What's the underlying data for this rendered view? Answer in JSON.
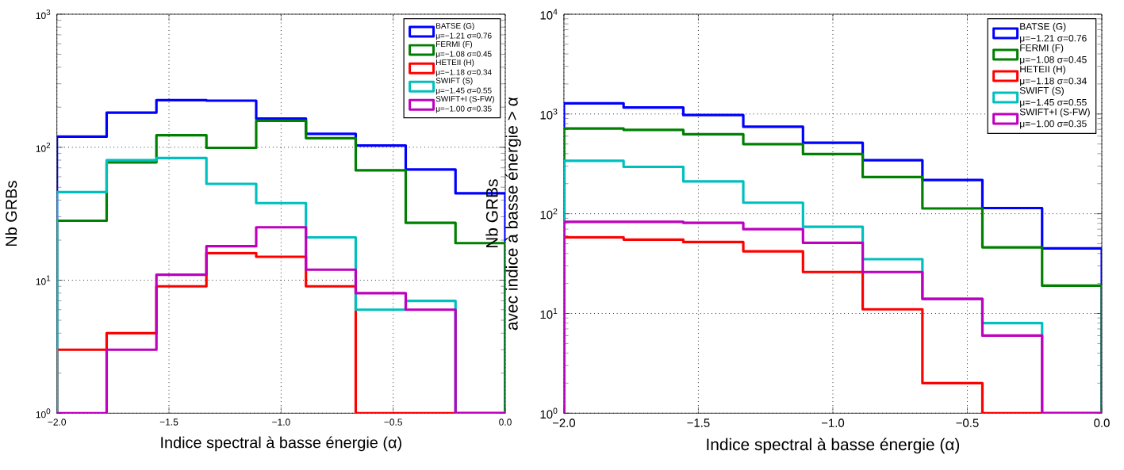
{
  "chart_data": [
    {
      "type": "histogram",
      "xlabel": "Indice spectral à basse énergie (α)",
      "ylabel": "Nb GRBs",
      "bins": [
        -2,
        -1.778,
        -1.556,
        -1.333,
        -1.111,
        -0.889,
        -0.667,
        -0.444,
        -0.222,
        0
      ],
      "xlim": [
        -2,
        0
      ],
      "ylim": [
        1,
        1000
      ],
      "log": true,
      "grid": true,
      "legend": "top right",
      "xticks": [
        {
          "value": -2,
          "label": "−2.0"
        },
        {
          "value": -1.5,
          "label": "−1.5"
        },
        {
          "value": -1,
          "label": "−1.0"
        },
        {
          "value": -0.5,
          "label": "−0.5"
        },
        {
          "value": 0,
          "label": "0.0"
        }
      ],
      "yticks": [
        {
          "value": 1,
          "label": "10$^{0}$"
        },
        {
          "value": 10,
          "label": "10$^{1}$"
        },
        {
          "value": 100,
          "label": "10$^{2}$"
        },
        {
          "value": 1000,
          "label": "10$^{3}$"
        }
      ],
      "series": [
        {
          "name": "BATSE (G)\nμ=−1.21     σ=0.76",
          "color": "#0000ff",
          "values": [
            120,
            182,
            226,
            224,
            164,
            126,
            103,
            68,
            45
          ]
        },
        {
          "name": "FERMI (F)\nμ=−1.08     σ=0.45",
          "color": "#008000",
          "values": [
            28,
            77,
            123,
            99,
            158,
            117,
            67,
            27,
            19
          ]
        },
        {
          "name": "HETEII (H)\nμ=−1.18     σ=0.34",
          "color": "#ff0000",
          "values": [
            3,
            4,
            9,
            16,
            15,
            9,
            1,
            1,
            1
          ]
        },
        {
          "name": "SWIFT (S)\nμ=−1.45     σ=0.55",
          "color": "#00bfbf",
          "values": [
            46,
            80,
            83,
            53,
            38,
            21,
            6,
            7,
            1
          ]
        },
        {
          "name": "SWIFT+I (S-FW)\nμ=−1.00     σ=0.35",
          "color": "#bf00bf",
          "values": [
            1,
            3,
            11,
            18,
            25,
            12,
            8,
            6,
            1
          ]
        }
      ]
    },
    {
      "type": "histogram",
      "xlabel": "Indice spectral à basse énergie (α)",
      "ylabel": "Nb GRBs\navec indice à basse énergie > α",
      "bins": [
        -2,
        -1.778,
        -1.556,
        -1.333,
        -1.111,
        -0.889,
        -0.667,
        -0.444,
        -0.222,
        0
      ],
      "xlim": [
        -2,
        0
      ],
      "ylim": [
        1,
        10000
      ],
      "log": true,
      "grid": true,
      "legend": "top right",
      "xticks": [
        {
          "value": -2,
          "label": "−2.0"
        },
        {
          "value": -1.5,
          "label": "−1.5"
        },
        {
          "value": -1,
          "label": "−1.0"
        },
        {
          "value": -0.5,
          "label": "−0.5"
        },
        {
          "value": 0,
          "label": "0.0"
        }
      ],
      "yticks": [
        {
          "value": 1,
          "label": "10$^{0}$"
        },
        {
          "value": 10,
          "label": "10$^{1}$"
        },
        {
          "value": 100,
          "label": "10$^{2}$"
        },
        {
          "value": 1000,
          "label": "10$^{3}$"
        },
        {
          "value": 10000,
          "label": "10$^{4}$"
        }
      ],
      "series": [
        {
          "name": "BATSE (G)\nμ=−1.21     σ=0.76",
          "color": "#0000ff",
          "values": [
            1280,
            1160,
            975,
            745,
            515,
            344,
            218,
            114,
            45
          ]
        },
        {
          "name": "FERMI (F)\nμ=−1.08     σ=0.45",
          "color": "#008000",
          "values": [
            715,
            692,
            627,
            499,
            396,
            233,
            113,
            46,
            19
          ]
        },
        {
          "name": "HETEII (H)\nμ=−1.18     σ=0.34",
          "color": "#ff0000",
          "values": [
            58,
            55,
            52,
            42,
            26,
            11,
            2,
            1,
            1
          ]
        },
        {
          "name": "SWIFT (S)\nμ=−1.45     σ=0.55",
          "color": "#00bfbf",
          "values": [
            339,
            295,
            211,
            129,
            74,
            35,
            14,
            8,
            1
          ]
        },
        {
          "name": "SWIFT+I (S-FW)\nμ=−1.00     σ=0.35",
          "color": "#bf00bf",
          "values": [
            83,
            83,
            81,
            70,
            51,
            26,
            14,
            6,
            1
          ]
        }
      ]
    }
  ]
}
